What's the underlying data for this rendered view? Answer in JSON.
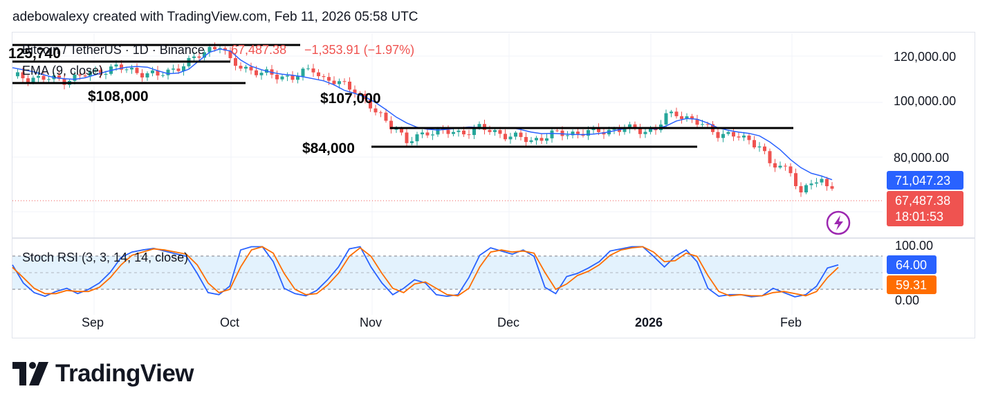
{
  "header": {
    "caption": "adebowalexy created with TradingView.com, Feb 11, 2026 05:58 UTC"
  },
  "legend": {
    "symbol": "Bitcoin / TetherUS · 1D · Binance",
    "price": "67,487.38",
    "change": "−1,353.91 (−1.97%)",
    "ema": "EMA (9, close)",
    "stoch": "Stoch RSI (3, 3, 14, 14, close)"
  },
  "annotations": [
    "125,740",
    "$108,000",
    "$107,000",
    "$84,000"
  ],
  "price_axis": {
    "ticks": [
      "120,000.00",
      "100,000.00",
      "80,000.00"
    ],
    "ema_label": "71,047.23",
    "last_label": "67,487.38",
    "countdown": "18:01:53"
  },
  "stoch_axis": {
    "ticks": [
      "100.00",
      "0.00"
    ],
    "k_label": "64.00",
    "d_label": "59.31"
  },
  "time_axis": [
    "Sep",
    "Oct",
    "Nov",
    "Dec",
    "2026",
    "Feb"
  ],
  "colors": {
    "up": "#26a69a",
    "down": "#ef5350",
    "ema": "#2962ff",
    "stoch_k": "#2962ff",
    "stoch_d": "#ff6d00",
    "band": "#e3f2fd",
    "lightning": "#9c27b0"
  },
  "chart_data": [
    {
      "type": "candlestick",
      "title": "Bitcoin / TetherUS · 1D · Binance",
      "x_axis_labels": [
        "Sep",
        "Oct",
        "Nov",
        "Dec",
        "2026",
        "Feb"
      ],
      "y_range": [
        58000,
        128000
      ],
      "series": [
        {
          "name": "EMA (9, close)",
          "points": [
            [
              0,
              115400
            ],
            [
              4,
              113800
            ],
            [
              6,
              112600
            ],
            [
              8,
              111500
            ],
            [
              10,
              111000
            ],
            [
              12,
              110800
            ],
            [
              14,
              111400
            ],
            [
              16,
              112600
            ],
            [
              18,
              113800
            ],
            [
              20,
              114800
            ],
            [
              22,
              115600
            ],
            [
              24,
              115900
            ],
            [
              26,
              115600
            ],
            [
              28,
              114200
            ],
            [
              30,
              113000
            ],
            [
              32,
              113300
            ],
            [
              34,
              114800
            ],
            [
              36,
              118200
            ],
            [
              38,
              121500
            ],
            [
              40,
              122800
            ],
            [
              42,
              122000
            ],
            [
              44,
              118400
            ],
            [
              46,
              116000
            ],
            [
              48,
              114600
            ],
            [
              50,
              113500
            ],
            [
              52,
              112800
            ],
            [
              54,
              112400
            ],
            [
              56,
              111800
            ],
            [
              58,
              111000
            ],
            [
              60,
              110200
            ],
            [
              62,
              108600
            ],
            [
              64,
              106400
            ],
            [
              66,
              105200
            ],
            [
              68,
              103800
            ],
            [
              70,
              101600
            ],
            [
              72,
              98800
            ],
            [
              74,
              95800
            ],
            [
              76,
              93500
            ],
            [
              78,
              91800
            ],
            [
              80,
              91000
            ],
            [
              82,
              90700
            ],
            [
              84,
              91000
            ],
            [
              86,
              91500
            ],
            [
              88,
              91900
            ],
            [
              90,
              91700
            ],
            [
              92,
              91300
            ],
            [
              94,
              91500
            ],
            [
              96,
              91700
            ],
            [
              98,
              90900
            ],
            [
              100,
              89900
            ],
            [
              102,
              89300
            ],
            [
              104,
              89400
            ],
            [
              106,
              89200
            ],
            [
              108,
              89000
            ],
            [
              110,
              88900
            ],
            [
              112,
              89100
            ],
            [
              114,
              89600
            ],
            [
              116,
              90400
            ],
            [
              118,
              91300
            ],
            [
              120,
              91600
            ],
            [
              122,
              91400
            ],
            [
              124,
              91100
            ],
            [
              126,
              92300
            ],
            [
              128,
              94300
            ],
            [
              130,
              95300
            ],
            [
              132,
              95000
            ],
            [
              134,
              93500
            ],
            [
              136,
              91600
            ],
            [
              138,
              90600
            ],
            [
              140,
              89900
            ],
            [
              142,
              89400
            ],
            [
              144,
              88400
            ],
            [
              146,
              86000
            ],
            [
              148,
              82900
            ],
            [
              150,
              79000
            ],
            [
              152,
              75800
            ],
            [
              154,
              73600
            ],
            [
              156,
              72500
            ],
            [
              158,
              71047
            ]
          ]
        },
        {
          "name": "Candles (close)",
          "points": [
            [
              0,
              112000
            ],
            [
              10,
              110500
            ],
            [
              20,
              115500
            ],
            [
              28,
              112200
            ],
            [
              34,
              117500
            ],
            [
              38,
              123000
            ],
            [
              40,
              124400
            ],
            [
              42,
              117500
            ],
            [
              48,
              113000
            ],
            [
              54,
              111500
            ],
            [
              58,
              115000
            ],
            [
              60,
              111000
            ],
            [
              66,
              107000
            ],
            [
              70,
              97500
            ],
            [
              74,
              91500
            ],
            [
              76,
              85500
            ],
            [
              80,
              90300
            ],
            [
              86,
              89500
            ],
            [
              90,
              91500
            ],
            [
              96,
              88300
            ],
            [
              100,
              86500
            ],
            [
              104,
              89000
            ],
            [
              112,
              90000
            ],
            [
              118,
              91200
            ],
            [
              122,
              90600
            ],
            [
              124,
              91000
            ],
            [
              126,
              96000
            ],
            [
              128,
              97500
            ],
            [
              132,
              93500
            ],
            [
              136,
              89500
            ],
            [
              140,
              88000
            ],
            [
              144,
              85000
            ],
            [
              146,
              77000
            ],
            [
              150,
              75000
            ],
            [
              152,
              65000
            ],
            [
              154,
              70000
            ],
            [
              156,
              70500
            ],
            [
              158,
              67487
            ]
          ]
        }
      ],
      "horizontal_levels": [
        125740,
        118000,
        108000,
        90500,
        84000
      ]
    },
    {
      "type": "line",
      "title": "Stoch RSI (3, 3, 14, 14, close)",
      "y_range": [
        0,
        100
      ],
      "bands": [
        80,
        20
      ],
      "series": [
        {
          "name": "K",
          "values": [
            64,
            30,
            12,
            5,
            14,
            20,
            10,
            18,
            30,
            50,
            78,
            88,
            92,
            95,
            90,
            85,
            80,
            48,
            12,
            8,
            24,
            92,
            98,
            98,
            70,
            20,
            10,
            6,
            16,
            36,
            60,
            94,
            98,
            60,
            30,
            8,
            20,
            36,
            30,
            8,
            5,
            8,
            40,
            82,
            96,
            90,
            84,
            92,
            80,
            22,
            10,
            42,
            48,
            58,
            70,
            90,
            94,
            98,
            98,
            80,
            60,
            80,
            92,
            70,
            20,
            5,
            8,
            8,
            4,
            6,
            20,
            12,
            4,
            8,
            24,
            58,
            64
          ]
        },
        {
          "name": "D",
          "values": [
            59.31,
            40,
            20,
            10,
            10,
            16,
            14,
            14,
            22,
            40,
            64,
            82,
            88,
            94,
            92,
            88,
            84,
            64,
            30,
            12,
            18,
            60,
            92,
            98,
            86,
            48,
            18,
            8,
            10,
            26,
            48,
            80,
            96,
            80,
            48,
            20,
            12,
            28,
            32,
            20,
            8,
            6,
            20,
            60,
            88,
            92,
            88,
            90,
            86,
            50,
            18,
            28,
            44,
            52,
            64,
            82,
            92,
            96,
            98,
            88,
            70,
            72,
            86,
            80,
            44,
            14,
            6,
            8,
            6,
            6,
            12,
            14,
            10,
            6,
            14,
            40,
            59.31
          ]
        }
      ]
    }
  ]
}
